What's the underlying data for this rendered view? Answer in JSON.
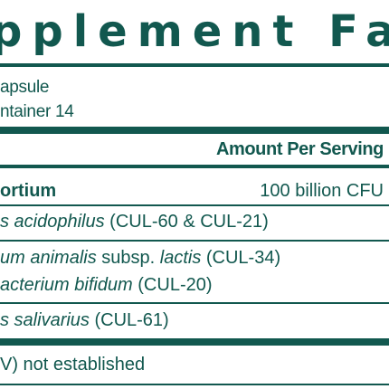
{
  "panel": {
    "title": "pplement Fa",
    "serving_size": "apsule",
    "servings_per_container": "ntainer 14",
    "column_header": "Amount Per Serving",
    "ingredients": [
      {
        "name": "ortium",
        "amount": "100 billion CFU"
      },
      {
        "prefix": "s acidophilus",
        "suffix": " (CUL-60 & CUL-21)"
      },
      {
        "prefix": "um animalis",
        "middle": " subsp. ",
        "italic2": "lactis",
        "suffix": " (CUL-34)"
      },
      {
        "prefix": "acterium bifidum",
        "suffix": " (CUL-20)"
      },
      {
        "prefix": "s salivarius",
        "suffix": " (CUL-61)"
      }
    ],
    "footnote": "V) not established"
  },
  "colors": {
    "text": "#12584f",
    "background": "#ffffff"
  }
}
